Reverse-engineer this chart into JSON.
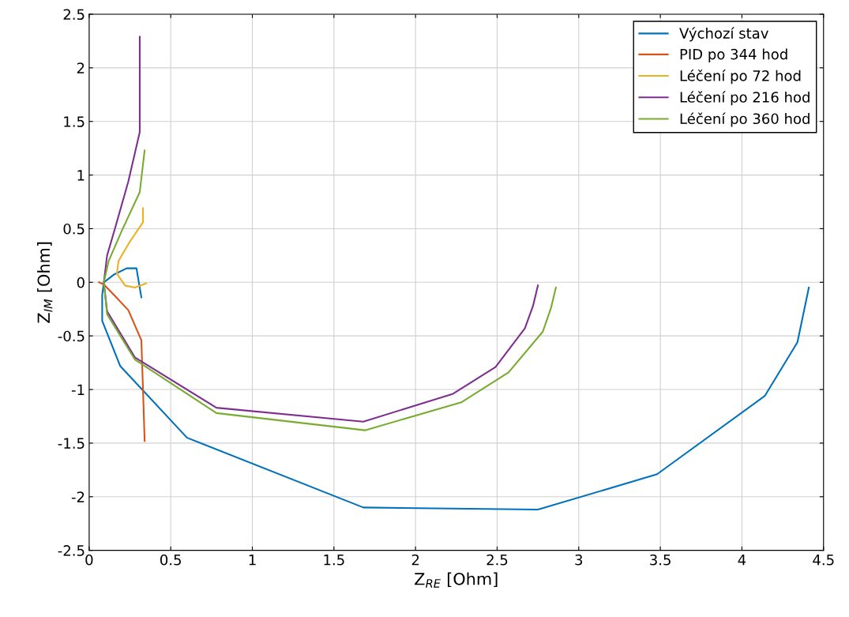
{
  "chart_data": {
    "type": "line",
    "xlabel": "Z$_{RE}$ [Ohm]",
    "ylabel": "Z$_{IM}$ [Ohm]",
    "xlim": [
      0,
      4.5
    ],
    "xticks": [
      0,
      0.5,
      1,
      1.5,
      2,
      2.5,
      3,
      3.5,
      4,
      4.5
    ],
    "ylim": [
      -2.5,
      2.5
    ],
    "yticks": [
      -2.5,
      -2,
      -1.5,
      -1,
      -0.5,
      0,
      0.5,
      1,
      1.5,
      2,
      2.5
    ],
    "grid": true,
    "legend": "top right",
    "series": [
      {
        "name": "Výchozí stav",
        "color": "#0072bd",
        "x": [
          0.32,
          0.29,
          0.23,
          0.15,
          0.09,
          0.08,
          0.08,
          0.19,
          0.6,
          1.68,
          2.75,
          3.48,
          4.14,
          4.34,
          4.41
        ],
        "values": [
          -0.14,
          0.13,
          0.13,
          0.07,
          0,
          -0.12,
          -0.36,
          -0.78,
          -1.45,
          -2.1,
          -2.12,
          -1.79,
          -1.06,
          -0.56,
          -0.05
        ]
      },
      {
        "name": "PID po 344 hod",
        "color": "#d95319",
        "x": [
          0.06,
          0.09,
          0.16,
          0.24,
          0.32,
          0.33,
          0.34
        ],
        "values": [
          0,
          -0.02,
          -0.13,
          -0.26,
          -0.54,
          -1.0,
          -1.48
        ]
      },
      {
        "name": "Léčení po 72 hod",
        "color": "#edb120",
        "x": [
          0.33,
          0.33,
          0.25,
          0.18,
          0.17,
          0.22,
          0.28,
          0.35
        ],
        "values": [
          0.69,
          0.56,
          0.38,
          0.2,
          0.08,
          -0.03,
          -0.05,
          -0.01
        ]
      },
      {
        "name": "Léčení po 216 hod",
        "color": "#7e2f8e",
        "x": [
          0.31,
          0.31,
          0.24,
          0.16,
          0.11,
          0.09,
          0.11,
          0.28,
          0.78,
          1.68,
          2.23,
          2.49,
          2.67,
          2.72,
          2.75
        ],
        "values": [
          2.29,
          1.4,
          0.94,
          0.51,
          0.25,
          0,
          -0.27,
          -0.7,
          -1.17,
          -1.3,
          -1.04,
          -0.79,
          -0.43,
          -0.22,
          -0.03
        ]
      },
      {
        "name": "Léčení po 360 hod",
        "color": "#77ac30",
        "x": [
          0.34,
          0.31,
          0.2,
          0.12,
          0.09,
          0.11,
          0.28,
          0.78,
          1.69,
          2.28,
          2.57,
          2.78,
          2.83,
          2.86
        ],
        "values": [
          1.23,
          0.84,
          0.48,
          0.2,
          0,
          -0.3,
          -0.72,
          -1.22,
          -1.38,
          -1.12,
          -0.84,
          -0.46,
          -0.24,
          -0.05
        ]
      }
    ]
  }
}
